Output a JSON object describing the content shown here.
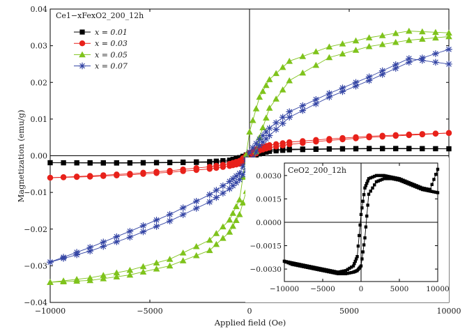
{
  "chart_data": {
    "type": "line",
    "xlabel": "Applied field (Oe)",
    "ylabel": "Magnetization (emu/g)",
    "xlim": [
      -10000,
      10000
    ],
    "ylim": [
      -0.04,
      0.04
    ],
    "xticks": [
      -10000,
      -5000,
      0,
      5000,
      10000
    ],
    "yticks": [
      -0.04,
      -0.03,
      -0.02,
      -0.01,
      0.0,
      0.01,
      0.02,
      0.03,
      0.04
    ],
    "xtick_labels": [
      "−10000",
      "−5000",
      "0",
      "5000",
      "10000"
    ],
    "ytick_labels": [
      "−0.04",
      "−0.03",
      "−0.02",
      "−0.01",
      "0.00",
      "0.01",
      "0.02",
      "0.03",
      "0.04"
    ],
    "legend_title": "Ce1−xFexO2_200_12h",
    "legend_position": "top-left",
    "series": [
      {
        "name": "x = 0.01",
        "label_var": "x",
        "label_val": "= 0.01",
        "color": "#000000",
        "marker": "square",
        "hysteresis": true,
        "x": [
          -10000,
          -8000,
          -6000,
          -4000,
          -2000,
          -1000,
          -500,
          0,
          500,
          1000,
          2000,
          4000,
          6000,
          8000,
          10000
        ],
        "y_upper": [
          -0.0019,
          -0.0019,
          -0.0019,
          -0.0018,
          -0.0016,
          -0.0012,
          -0.0005,
          0.0006,
          0.0012,
          0.0016,
          0.0018,
          0.0019,
          0.002,
          0.002,
          0.0019
        ],
        "y_lower": [
          -0.0019,
          -0.002,
          -0.002,
          -0.0019,
          -0.0018,
          -0.0016,
          -0.0012,
          -0.0006,
          0.0005,
          0.0012,
          0.0016,
          0.0018,
          0.0019,
          0.0019,
          0.0019
        ]
      },
      {
        "name": "x = 0.03",
        "label_var": "x",
        "label_val": "= 0.03",
        "color": "#e8211a",
        "marker": "circle",
        "hysteresis": true,
        "x": [
          -10000,
          -8000,
          -6000,
          -4000,
          -2000,
          -1000,
          -500,
          0,
          500,
          1000,
          2000,
          4000,
          6000,
          8000,
          10000
        ],
        "y_upper": [
          -0.006,
          -0.0055,
          -0.0049,
          -0.0041,
          -0.003,
          -0.0022,
          -0.0014,
          0.0008,
          0.0022,
          0.0029,
          0.0037,
          0.0046,
          0.0053,
          0.0058,
          0.0062
        ],
        "y_lower": [
          -0.006,
          -0.0057,
          -0.0052,
          -0.0045,
          -0.0036,
          -0.0028,
          -0.0022,
          -0.001,
          0.0014,
          0.0022,
          0.0031,
          0.0042,
          0.005,
          0.0056,
          0.0062
        ]
      },
      {
        "name": "x = 0.05",
        "label_var": "x",
        "label_val": "= 0.05",
        "color": "#7fc31c",
        "marker": "triangle",
        "hysteresis": true,
        "x": [
          -10000,
          -8000,
          -6000,
          -4000,
          -2000,
          -1000,
          -500,
          0,
          500,
          1000,
          2000,
          4000,
          6000,
          8000,
          10000
        ],
        "y_upper": [
          -0.0345,
          -0.0333,
          -0.0312,
          -0.0282,
          -0.023,
          -0.0175,
          -0.012,
          0.0065,
          0.016,
          0.0208,
          0.0258,
          0.0297,
          0.0322,
          0.034,
          0.0335
        ],
        "y_lower": [
          -0.0345,
          -0.034,
          -0.0325,
          -0.03,
          -0.0258,
          -0.0208,
          -0.016,
          -0.0065,
          0.005,
          0.013,
          0.0205,
          0.0268,
          0.0298,
          0.0315,
          0.0325
        ]
      },
      {
        "name": "x = 0.07",
        "label_var": "x",
        "label_val": "= 0.07",
        "color": "#3344a4",
        "marker": "asterisk",
        "hysteresis": true,
        "x": [
          -10000,
          -8000,
          -6000,
          -4000,
          -2000,
          -1000,
          -500,
          0,
          500,
          1000,
          2000,
          4000,
          6000,
          8000,
          10000
        ],
        "y_upper": [
          -0.029,
          -0.025,
          -0.0206,
          -0.016,
          -0.0106,
          -0.007,
          -0.0048,
          0.001,
          0.0045,
          0.0075,
          0.012,
          0.017,
          0.0215,
          0.0265,
          0.025
        ],
        "y_lower": [
          -0.029,
          -0.026,
          -0.0222,
          -0.0178,
          -0.0126,
          -0.009,
          -0.0065,
          -0.0025,
          0.0028,
          0.0055,
          0.0105,
          0.016,
          0.0205,
          0.0255,
          0.029
        ]
      }
    ],
    "inset": {
      "title": "CeO2_200_12h",
      "position": "bottom-right",
      "xlim": [
        -10000,
        10000
      ],
      "ylim": [
        -0.0038,
        0.0038
      ],
      "xticks": [
        -10000,
        -5000,
        0,
        5000,
        10000
      ],
      "yticks": [
        -0.003,
        -0.0015,
        0.0,
        0.0015,
        0.003
      ],
      "xtick_labels": [
        "−10000",
        "−5000",
        "0",
        "5000",
        "10000"
      ],
      "ytick_labels": [
        "−0.0030",
        "−0.0015",
        "0.0000",
        "0.0015",
        "0.0030"
      ],
      "series": [
        {
          "name": "",
          "color": "#000000",
          "marker": "square",
          "x": [
            -10000,
            -9000,
            -8000,
            -7000,
            -6000,
            -5000,
            -4000,
            -3000,
            -2000,
            -1000,
            -500,
            0,
            500,
            1000,
            2000,
            3000,
            4000,
            5000,
            6000,
            7000,
            8000,
            9000,
            10000
          ],
          "y_upper": [
            -0.0025,
            -0.0026,
            -0.0027,
            -0.0028,
            -0.0029,
            -0.003,
            -0.0031,
            -0.0032,
            -0.0031,
            -0.0028,
            -0.0022,
            0.0005,
            0.0022,
            0.0028,
            0.003,
            0.003,
            0.0029,
            0.0028,
            0.0026,
            0.0024,
            0.0022,
            0.0021,
            0.0034
          ],
          "y_lower": [
            -0.0025,
            -0.0027,
            -0.0028,
            -0.0029,
            -0.003,
            -0.0031,
            -0.0032,
            -0.0033,
            -0.0033,
            -0.0032,
            -0.0031,
            -0.0028,
            -0.001,
            0.0018,
            0.0026,
            0.0028,
            0.0028,
            0.0027,
            0.0025,
            0.0023,
            0.0021,
            0.002,
            0.0019
          ]
        }
      ]
    }
  }
}
